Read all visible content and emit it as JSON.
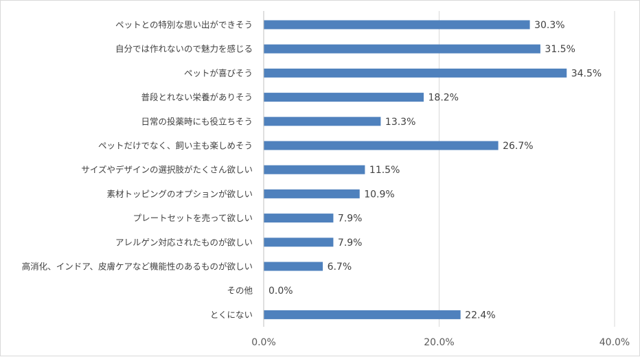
{
  "chart_data": {
    "type": "bar",
    "orientation": "horizontal",
    "title": "",
    "xlabel": "",
    "ylabel": "",
    "xlim": [
      0,
      40
    ],
    "x_ticks": [
      0,
      20,
      40
    ],
    "x_tick_labels": [
      "0.0%",
      "20.0%",
      "40.0%"
    ],
    "grid": true,
    "bar_color": "#4f81bd",
    "categories": [
      "ペットとの特別な思い出ができそう",
      "自分では作れないので魅力を感じる",
      "ペットが喜びそう",
      "普段とれない栄養がありそう",
      "日常の投薬時にも役立ちそう",
      "ペットだけでなく、飼い主も楽しめそう",
      "サイズやデザインの選択肢がたくさん欲しい",
      "素材トッピングのオプションが欲しい",
      "プレートセットを売って欲しい",
      "アレルゲン対応されたものが欲しい",
      "高消化、インドア、皮膚ケアなど機能性のあるものが欲しい",
      "その他",
      "とくにない"
    ],
    "values": [
      30.3,
      31.5,
      34.5,
      18.2,
      13.3,
      26.7,
      11.5,
      10.9,
      7.9,
      7.9,
      6.7,
      0.0,
      22.4
    ],
    "value_labels": [
      "30.3%",
      "31.5%",
      "34.5%",
      "18.2%",
      "13.3%",
      "26.7%",
      "11.5%",
      "10.9%",
      "7.9%",
      "7.9%",
      "6.7%",
      "0.0%",
      "22.4%"
    ]
  }
}
